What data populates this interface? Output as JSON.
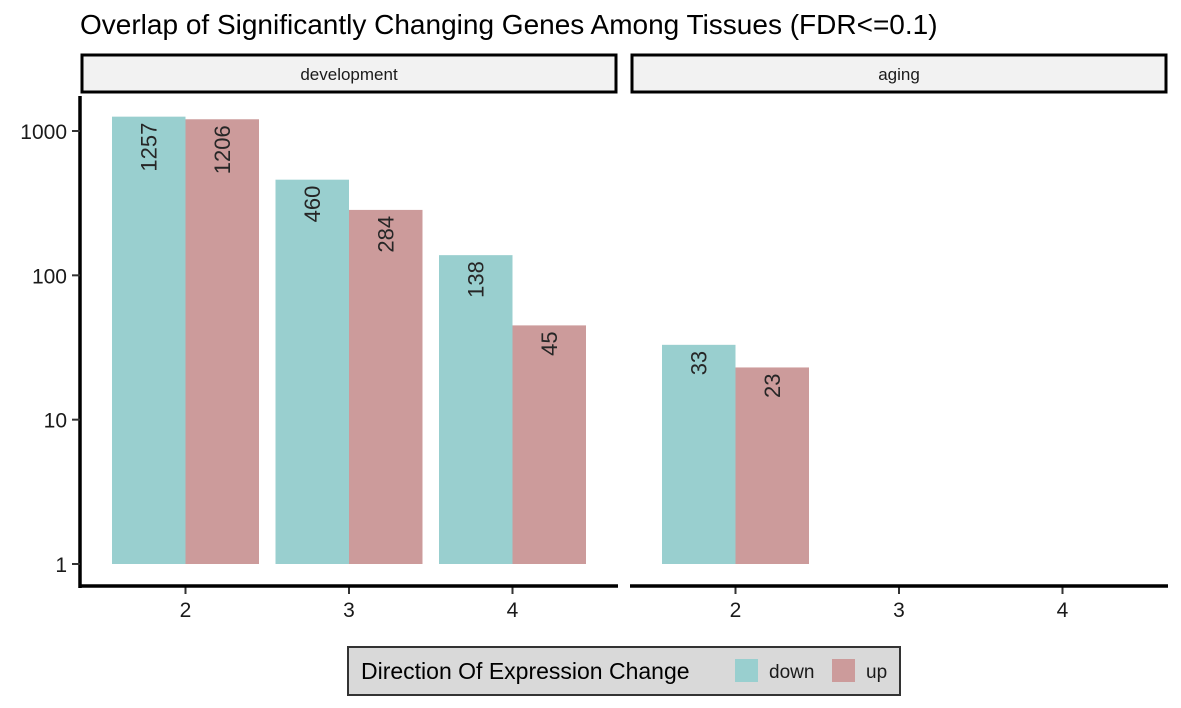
{
  "chart_data": {
    "type": "bar",
    "title": "Overlap of Significantly Changing Genes Among Tissues (FDR<=0.1)",
    "xlabel": "",
    "ylabel": "",
    "yscale": "log10",
    "ylim": [
      1,
      1600
    ],
    "yticks": [
      1,
      10,
      100,
      1000
    ],
    "ytick_labels": [
      "1",
      "10",
      "100",
      "1000"
    ],
    "categories": [
      "2",
      "3",
      "4"
    ],
    "panels": [
      {
        "name": "development",
        "series": [
          {
            "name": "down",
            "values": [
              1257,
              460,
              138
            ]
          },
          {
            "name": "up",
            "values": [
              1206,
              284,
              45
            ]
          }
        ]
      },
      {
        "name": "aging",
        "series": [
          {
            "name": "down",
            "values": [
              33,
              null,
              null
            ]
          },
          {
            "name": "up",
            "values": [
              23,
              null,
              null
            ]
          }
        ]
      }
    ],
    "legend": {
      "title": "Direction Of Expression Change",
      "position": "bottom",
      "entries": [
        {
          "name": "down",
          "color": "#99cfcf"
        },
        {
          "name": "up",
          "color": "#cc9b9b"
        }
      ]
    },
    "grid": false
  }
}
